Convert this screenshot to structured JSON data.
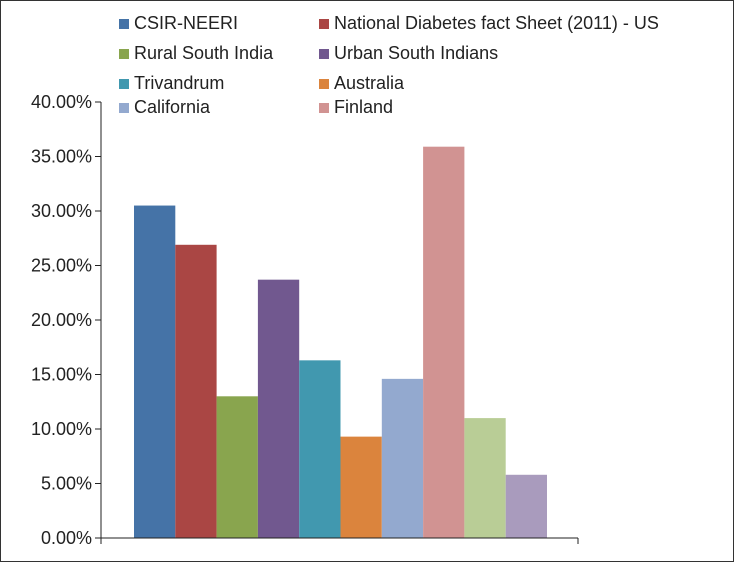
{
  "chart_data": {
    "type": "bar",
    "title": "",
    "xlabel": "",
    "ylabel": "",
    "ylim": [
      0,
      0.4
    ],
    "yticks": [
      {
        "value": 0.0,
        "label": "0.00%"
      },
      {
        "value": 0.05,
        "label": "5.00%"
      },
      {
        "value": 0.1,
        "label": "10.00%"
      },
      {
        "value": 0.15,
        "label": "15.00%"
      },
      {
        "value": 0.2,
        "label": "20.00%"
      },
      {
        "value": 0.25,
        "label": "25.00%"
      },
      {
        "value": 0.3,
        "label": "30.00%"
      },
      {
        "value": 0.35,
        "label": "35.00%"
      },
      {
        "value": 0.4,
        "label": "40.00%"
      }
    ],
    "grid": false,
    "legend_position": "top",
    "series": [
      {
        "name": "CSIR-NEERI",
        "value": 0.305,
        "color": "#4573A7",
        "legend": true
      },
      {
        "name": "National Diabetes fact Sheet (2011) - US",
        "value": 0.269,
        "color": "#AA4644",
        "legend": true
      },
      {
        "name": "Rural South India",
        "value": 0.13,
        "color": "#89A54E",
        "legend": true
      },
      {
        "name": "Urban South Indians",
        "value": 0.237,
        "color": "#71588F",
        "legend": true
      },
      {
        "name": "Trivandrum",
        "value": 0.163,
        "color": "#4198AF",
        "legend": true
      },
      {
        "name": "Australia",
        "value": 0.093,
        "color": "#DB843D",
        "legend": true
      },
      {
        "name": "California",
        "value": 0.146,
        "color": "#93A9CF",
        "legend": true
      },
      {
        "name": "Finland",
        "value": 0.359,
        "color": "#D19392",
        "legend": true
      },
      {
        "name": "",
        "value": 0.11,
        "color": "#B9CD96",
        "legend": false
      },
      {
        "name": "",
        "value": 0.058,
        "color": "#A99BBD",
        "legend": false
      }
    ]
  }
}
